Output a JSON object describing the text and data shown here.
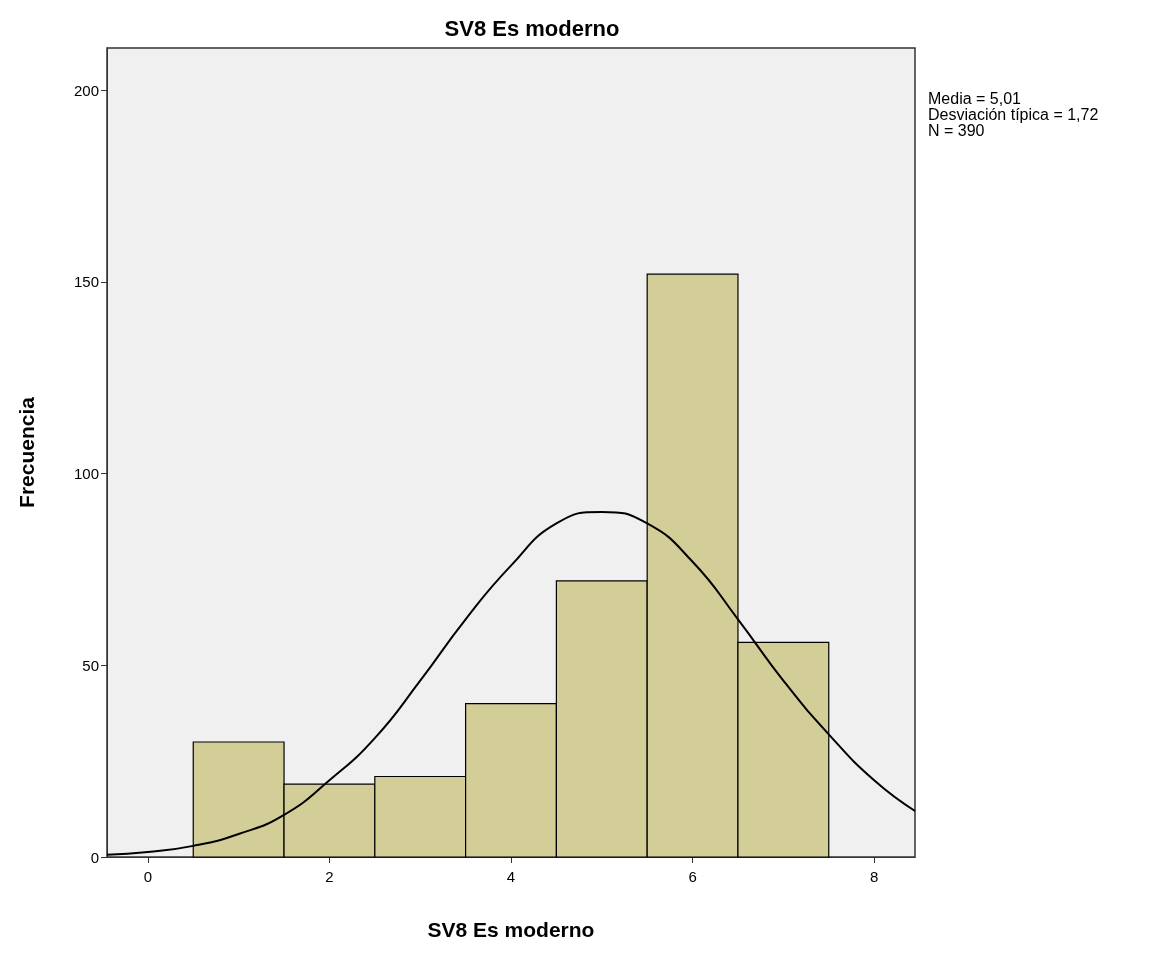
{
  "chart_data": {
    "type": "histogram",
    "title": "SV8 Es moderno",
    "xlabel": "SV8 Es moderno",
    "ylabel": "Frecuencia",
    "bins": [
      0.5,
      1.5,
      2.5,
      3.5,
      4.5,
      5.5,
      6.5,
      7.5
    ],
    "values": [
      30,
      19,
      21,
      40,
      72,
      152,
      56
    ],
    "color": "#d3ce97",
    "series": [
      {
        "type": "line",
        "color": "#000000",
        "x": [
          -0.45,
          0,
          0.5,
          1,
          1.5,
          2,
          2.5,
          3,
          3.5,
          4,
          4.5,
          5,
          5.5,
          6,
          6.5,
          7,
          7.5,
          8,
          8.45
        ],
        "values": [
          0.6,
          1.3,
          2.9,
          6,
          11,
          20,
          31,
          46,
          62,
          76,
          87,
          90,
          87,
          77,
          62,
          46,
          32,
          20,
          12
        ]
      }
    ],
    "xlim": [
      -0.45,
      8.45
    ],
    "xticks": [
      0,
      2,
      4,
      6,
      8
    ],
    "ylim": [
      0,
      211
    ],
    "yticks": [
      0,
      50,
      100,
      150,
      200
    ],
    "grid": false,
    "annotations": [
      "Media = 5,01",
      "Desviación típica = 1,72",
      "N = 390"
    ]
  }
}
